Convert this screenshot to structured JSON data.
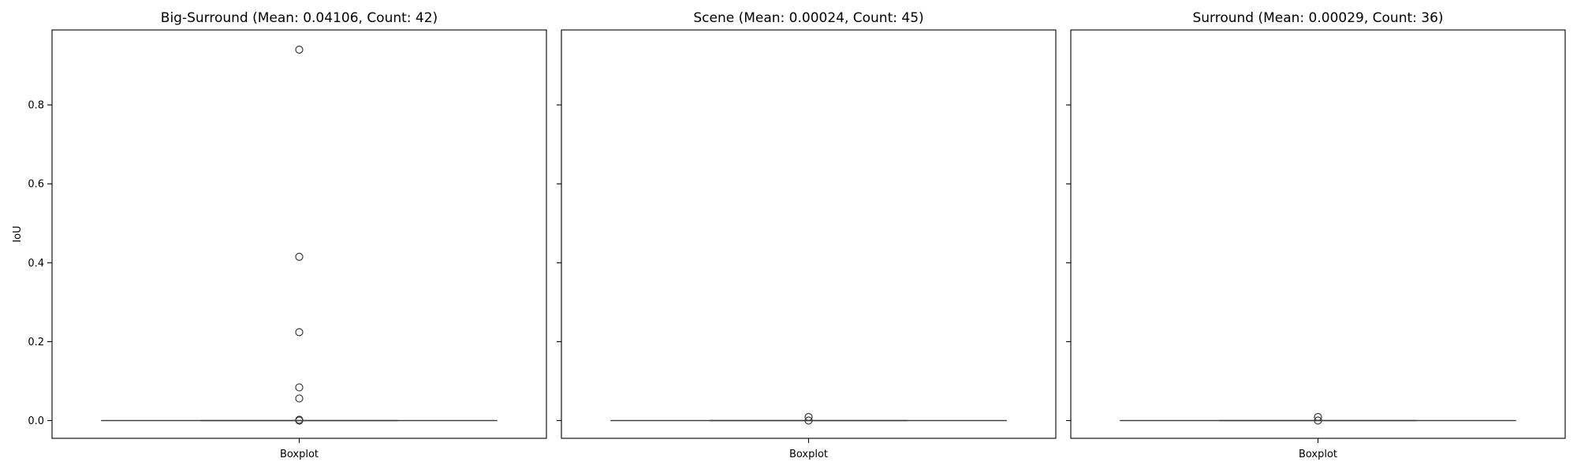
{
  "chart_data": [
    {
      "type": "box",
      "title": "Big-Surround (Mean:  0.04106, Count: 42)",
      "ylabel": "IoU",
      "categories": [
        "Boxplot"
      ],
      "ylim": [
        -0.045,
        0.99
      ],
      "yticks": [
        "0.0",
        "0.2",
        "0.4",
        "0.6",
        "0.8"
      ],
      "box": {
        "q1": 0.0,
        "median": 0.0,
        "q3": 0.0,
        "whisker_low": 0.0,
        "whisker_high": 0.0
      },
      "outliers": [
        0.94,
        0.415,
        0.224,
        0.084,
        0.056,
        0.002,
        0.0
      ]
    },
    {
      "type": "box",
      "title": "Scene (Mean:  0.00024, Count: 45)",
      "ylabel": "",
      "categories": [
        "Boxplot"
      ],
      "ylim": [
        -0.045,
        0.99
      ],
      "yticks": [],
      "box": {
        "q1": 0.0,
        "median": 0.0,
        "q3": 0.0,
        "whisker_low": 0.0,
        "whisker_high": 0.0
      },
      "outliers": [
        0.009,
        0.0
      ]
    },
    {
      "type": "box",
      "title": "Surround (Mean:  0.00029, Count: 36)",
      "ylabel": "",
      "categories": [
        "Boxplot"
      ],
      "ylim": [
        -0.045,
        0.99
      ],
      "yticks": [],
      "box": {
        "q1": 0.0,
        "median": 0.0,
        "q3": 0.0,
        "whisker_low": 0.0,
        "whisker_high": 0.0
      },
      "outliers": [
        0.009,
        0.0
      ]
    }
  ]
}
